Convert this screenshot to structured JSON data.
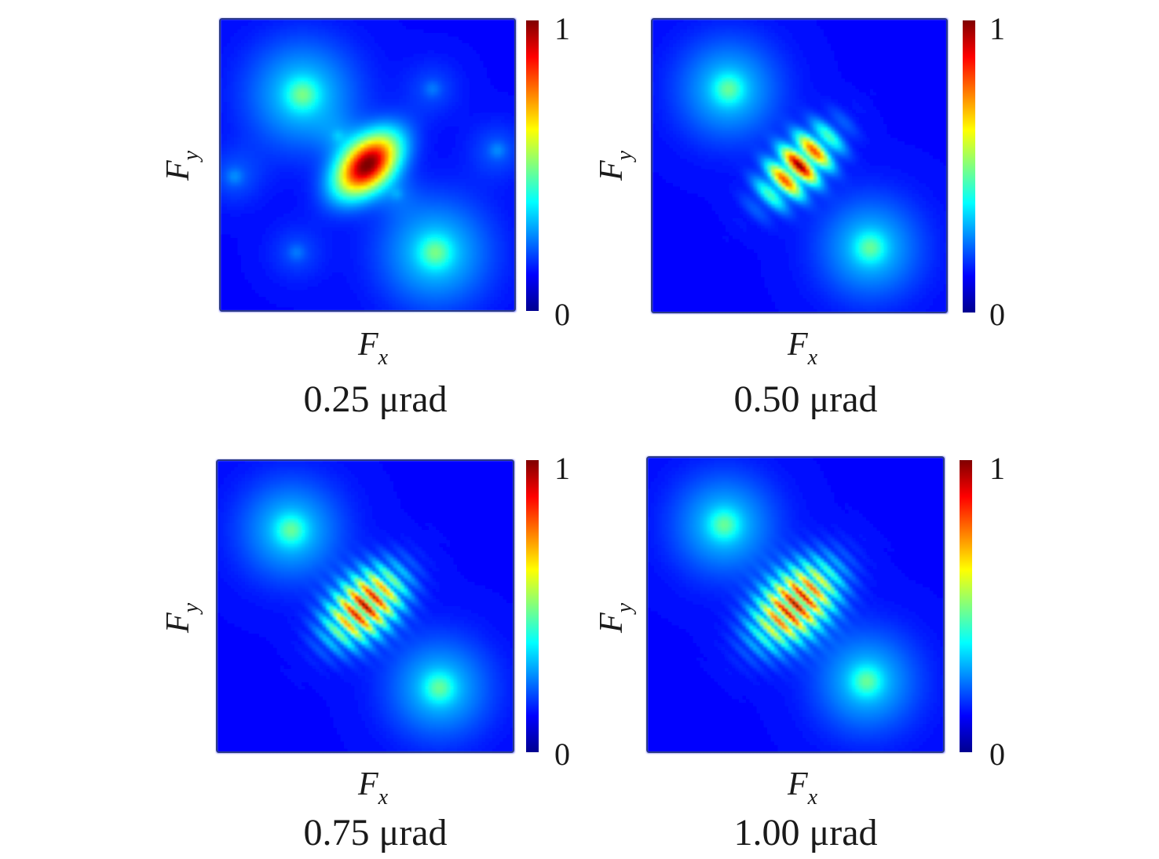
{
  "chart_data": [
    {
      "type": "heatmap",
      "title": "0.25 μrad",
      "xlabel_main": "F",
      "xlabel_sub": "x",
      "ylabel_main": "F",
      "ylabel_sub": "y",
      "colorbar": {
        "min_label": "0",
        "max_label": "1",
        "range": [
          0,
          1
        ],
        "colormap": "jet"
      },
      "center_shape": {
        "rx": 0.09,
        "ry": 0.055,
        "fringes": 0
      },
      "spots": [
        {
          "x": -0.22,
          "y": 0.24,
          "amp": 0.42,
          "sigma": 0.13
        },
        {
          "x": 0.23,
          "y": -0.3,
          "amp": 0.42,
          "sigma": 0.13
        },
        {
          "x": -0.45,
          "y": -0.04,
          "amp": 0.15,
          "sigma": 0.07
        },
        {
          "x": 0.44,
          "y": 0.05,
          "amp": 0.15,
          "sigma": 0.07
        },
        {
          "x": 0.22,
          "y": 0.26,
          "amp": 0.13,
          "sigma": 0.07
        },
        {
          "x": -0.24,
          "y": -0.3,
          "amp": 0.13,
          "sigma": 0.07
        },
        {
          "x": -0.1,
          "y": 0.1,
          "amp": 0.11,
          "sigma": 0.05
        },
        {
          "x": 0.1,
          "y": -0.1,
          "amp": 0.11,
          "sigma": 0.05
        }
      ]
    },
    {
      "type": "heatmap",
      "title": "0.50 μrad",
      "xlabel_main": "F",
      "xlabel_sub": "x",
      "ylabel_main": "F",
      "ylabel_sub": "y",
      "colorbar": {
        "min_label": "0",
        "max_label": "1",
        "range": [
          0,
          1
        ],
        "colormap": "jet"
      },
      "center_shape": {
        "rx": 0.1,
        "ry": 0.055,
        "fringes": 3
      },
      "spots": [
        {
          "x": -0.24,
          "y": 0.26,
          "amp": 0.4,
          "sigma": 0.12
        },
        {
          "x": 0.24,
          "y": -0.28,
          "amp": 0.4,
          "sigma": 0.12
        }
      ]
    },
    {
      "type": "heatmap",
      "title": "0.75 μrad",
      "xlabel_main": "F",
      "xlabel_sub": "x",
      "ylabel_main": "F",
      "ylabel_sub": "y",
      "colorbar": {
        "min_label": "0",
        "max_label": "1",
        "range": [
          0,
          1
        ],
        "colormap": "jet"
      },
      "center_shape": {
        "rx": 0.1,
        "ry": 0.065,
        "fringes": 5
      },
      "spots": [
        {
          "x": -0.25,
          "y": 0.26,
          "amp": 0.4,
          "sigma": 0.12
        },
        {
          "x": 0.25,
          "y": -0.28,
          "amp": 0.4,
          "sigma": 0.12
        }
      ]
    },
    {
      "type": "heatmap",
      "title": "1.00 μrad",
      "xlabel_main": "F",
      "xlabel_sub": "x",
      "ylabel_main": "F",
      "ylabel_sub": "y",
      "colorbar": {
        "min_label": "0",
        "max_label": "1",
        "range": [
          0,
          1
        ],
        "colormap": "jet"
      },
      "center_shape": {
        "rx": 0.11,
        "ry": 0.07,
        "fringes": 6
      },
      "spots": [
        {
          "x": -0.24,
          "y": 0.27,
          "amp": 0.4,
          "sigma": 0.12
        },
        {
          "x": 0.24,
          "y": -0.26,
          "amp": 0.4,
          "sigma": 0.12
        }
      ]
    }
  ]
}
